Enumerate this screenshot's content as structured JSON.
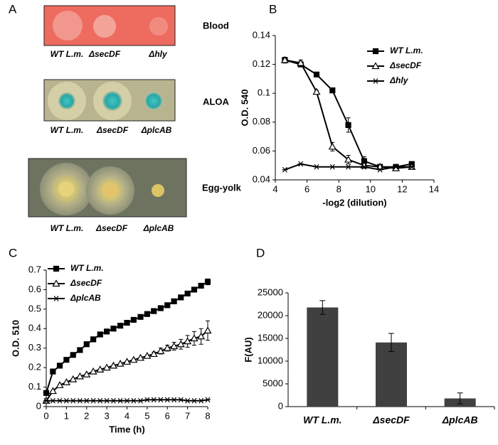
{
  "panel_a": {
    "panel": "A",
    "plates": [
      {
        "name": "Blood",
        "strains": [
          "WT L.m.",
          "ΔsecDF",
          "Δhly"
        ]
      },
      {
        "name": "ALOA",
        "strains": [
          "WT L.m.",
          "ΔsecDF",
          "ΔplcAB"
        ]
      },
      {
        "name": "Egg-yolk",
        "strains": [
          "WT L.m.",
          "ΔsecDF",
          "ΔplcAB"
        ]
      }
    ]
  },
  "chart_data": [
    {
      "type": "line",
      "panel": "B",
      "xlabel": "-log2 (dilution)",
      "ylabel": "O.D. 540",
      "xlim": [
        4,
        14
      ],
      "xticks": [
        4,
        6,
        8,
        10,
        12,
        14
      ],
      "ylim": [
        0.04,
        0.14
      ],
      "yticks": [
        0.04,
        0.06,
        0.08,
        0.1,
        0.12,
        0.14
      ],
      "legend": "upper right",
      "x": [
        4.6,
        5.6,
        6.6,
        7.6,
        8.6,
        9.6,
        10.6,
        11.6,
        12.6
      ],
      "series": [
        {
          "name": "WT L.m.",
          "color": "#000000",
          "marker": "square",
          "values": [
            0.123,
            0.12,
            0.113,
            0.102,
            0.078,
            0.053,
            0.049,
            0.049,
            0.051
          ],
          "errors": [
            0.002,
            0.001,
            0.001,
            0.001,
            0.005,
            0.003,
            0.001,
            0.001,
            0.001
          ]
        },
        {
          "name": "ΔsecDF",
          "color": "#000000",
          "marker": "triangle",
          "values": [
            0.123,
            0.121,
            0.101,
            0.063,
            0.054,
            0.05,
            0.049,
            0.048,
            0.049
          ],
          "errors": [
            0.002,
            0.002,
            0.001,
            0.003,
            0.003,
            0.002,
            0.001,
            0.001,
            0.001
          ]
        },
        {
          "name": "Δhly",
          "color": "#000000",
          "marker": "star",
          "values": [
            0.047,
            0.051,
            0.049,
            0.049,
            0.049,
            0.049,
            0.047,
            0.049,
            0.049
          ],
          "errors": [
            null,
            null,
            null,
            null,
            null,
            null,
            null,
            null,
            null
          ]
        }
      ]
    },
    {
      "type": "line",
      "panel": "C",
      "xlabel": "Time (h)",
      "ylabel": "O.D. 510",
      "xlim": [
        0,
        8
      ],
      "xticks": [
        0,
        1,
        2,
        3,
        4,
        5,
        6,
        7,
        8
      ],
      "ylim": [
        0,
        0.7
      ],
      "yticks": [
        0,
        0.1,
        0.2,
        0.3,
        0.4,
        0.5,
        0.6,
        0.7
      ],
      "legend": "upper left",
      "x": [
        0,
        0.33,
        0.67,
        1,
        1.33,
        1.67,
        2,
        2.33,
        2.67,
        3,
        3.33,
        3.67,
        4,
        4.33,
        4.67,
        5,
        5.33,
        5.67,
        6,
        6.33,
        6.67,
        7,
        7.33,
        7.67,
        8
      ],
      "series": [
        {
          "name": "WT L.m.",
          "color": "#000000",
          "marker": "square",
          "values": [
            0.07,
            0.18,
            0.21,
            0.24,
            0.265,
            0.29,
            0.32,
            0.345,
            0.37,
            0.385,
            0.4,
            0.415,
            0.43,
            0.445,
            0.46,
            0.475,
            0.49,
            0.505,
            0.52,
            0.54,
            0.56,
            0.58,
            0.6,
            0.62,
            0.64
          ],
          "errors": [
            null,
            null,
            null,
            null,
            null,
            null,
            null,
            null,
            null,
            null,
            null,
            null,
            null,
            null,
            null,
            null,
            null,
            null,
            null,
            null,
            null,
            null,
            null,
            0.01,
            0.015
          ]
        },
        {
          "name": "ΔsecDF",
          "color": "#000000",
          "marker": "triangle",
          "values": [
            0.03,
            0.08,
            0.11,
            0.125,
            0.14,
            0.155,
            0.165,
            0.18,
            0.19,
            0.2,
            0.21,
            0.22,
            0.23,
            0.24,
            0.25,
            0.26,
            0.27,
            0.285,
            0.3,
            0.31,
            0.32,
            0.335,
            0.35,
            0.36,
            0.39
          ],
          "errors": [
            null,
            null,
            null,
            null,
            null,
            null,
            null,
            null,
            null,
            null,
            null,
            null,
            null,
            null,
            null,
            null,
            0.01,
            0.015,
            0.015,
            0.02,
            0.025,
            0.03,
            0.035,
            0.04,
            0.05
          ]
        },
        {
          "name": "ΔplcAB",
          "color": "#000000",
          "marker": "star",
          "values": [
            0.03,
            0.03,
            0.03,
            0.03,
            0.03,
            0.03,
            0.03,
            0.03,
            0.03,
            0.03,
            0.03,
            0.03,
            0.03,
            0.03,
            0.03,
            0.035,
            0.035,
            0.035,
            0.035,
            0.035,
            0.035,
            0.03,
            0.03,
            0.03,
            0.035
          ],
          "errors": [
            null,
            null,
            null,
            null,
            null,
            null,
            null,
            null,
            null,
            null,
            null,
            null,
            null,
            null,
            null,
            null,
            null,
            null,
            null,
            null,
            null,
            null,
            null,
            null,
            null
          ]
        }
      ]
    },
    {
      "type": "bar",
      "panel": "D",
      "ylabel": "F(AU)",
      "categories": [
        "WT L.m.",
        "ΔsecDF",
        "ΔplcAB"
      ],
      "values": [
        21800,
        14100,
        1800
      ],
      "errors": [
        1500,
        2000,
        1200
      ],
      "color": "#404040",
      "ylim": [
        0,
        25000
      ],
      "yticks": [
        0,
        5000,
        10000,
        15000,
        20000,
        25000
      ]
    }
  ]
}
